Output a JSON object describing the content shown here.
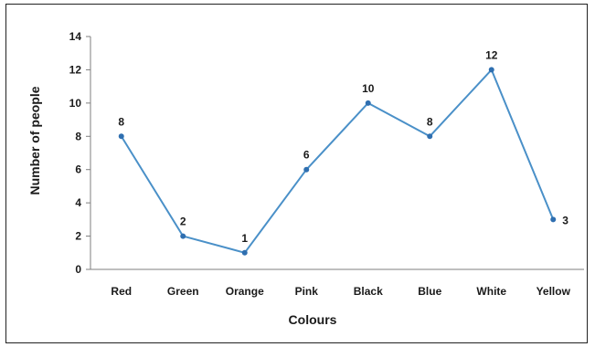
{
  "chart_data": {
    "type": "line",
    "categories": [
      "Red",
      "Green",
      "Orange",
      "Pink",
      "Black",
      "Blue",
      "White",
      "Yellow"
    ],
    "values": [
      8,
      2,
      1,
      6,
      10,
      8,
      12,
      3
    ],
    "data_labels": [
      "8",
      "2",
      "1",
      "6",
      "10",
      "8",
      "12",
      "3"
    ],
    "title": "",
    "xlabel": "Colours",
    "ylabel": "Number of people",
    "ylim": [
      0,
      14
    ],
    "yticks": [
      "0",
      "2",
      "4",
      "6",
      "8",
      "10",
      "12",
      "14"
    ],
    "grid": false,
    "legend": "none",
    "colors": {
      "line": "#4a90c8",
      "marker": "#2f6fb0",
      "axis": "#7f7f7f",
      "text": "#1a1a1a"
    }
  }
}
